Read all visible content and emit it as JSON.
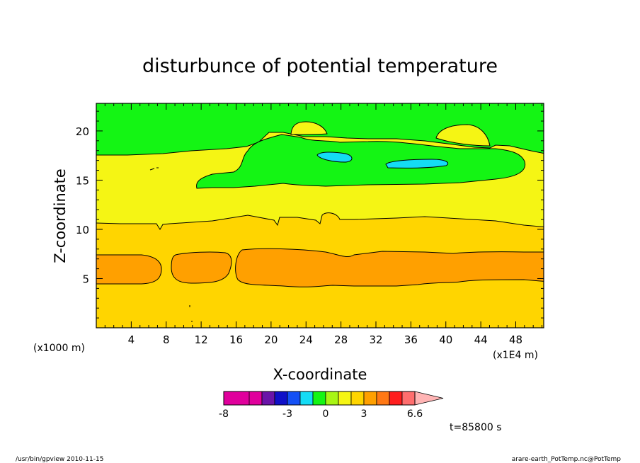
{
  "chart_data": {
    "type": "heatmap",
    "title": "disturbunce of potential temperature",
    "xlabel": "X-coordinate",
    "ylabel": "Z-coordinate",
    "x_ticks": [
      "4",
      "8",
      "12",
      "16",
      "20",
      "24",
      "28",
      "32",
      "36",
      "40",
      "44",
      "48"
    ],
    "y_ticks": [
      "5",
      "10",
      "15",
      "20"
    ],
    "x_unit_left": "(x1000 m)",
    "x_unit_right": "(x1E4 m)",
    "xlim": [
      0,
      51.2
    ],
    "ylim": [
      0,
      22.8
    ],
    "colorbar": {
      "colors": [
        "#e0009c",
        "#e0009c",
        "#e0009c",
        "#6a14a8",
        "#1010c8",
        "#1450f5",
        "#14dcf5",
        "#14f514",
        "#a8f514",
        "#f5f514",
        "#ffd500",
        "#ffa000",
        "#ff7814",
        "#ff1e1e",
        "#ff6e6e",
        "#ffb4b4"
      ],
      "labels": [
        {
          "text": "-8",
          "index": 0
        },
        {
          "text": "-3",
          "index": 5
        },
        {
          "text": "0",
          "index": 8
        },
        {
          "text": "3",
          "index": 11
        },
        {
          "text": "6.6",
          "index": 15
        }
      ]
    },
    "bands": [
      {
        "name": "0.5 to 1.5",
        "color": "#ffd500"
      },
      {
        "name": "1.5 to 2.5",
        "color": "#ffa000"
      },
      {
        "name": "-0.5 to 0.5",
        "color": "#f5f514"
      },
      {
        "name": "-1.5 to -0.5",
        "color": "#14f514"
      },
      {
        "name": "-2.5 to -1.5",
        "color": "#14dcf5"
      }
    ]
  },
  "time_label": "t=85800 s",
  "footer": {
    "left": "/usr/bin/gpview   2010-11-15",
    "right": "arare-earth_PotTemp.nc@PotTemp"
  }
}
